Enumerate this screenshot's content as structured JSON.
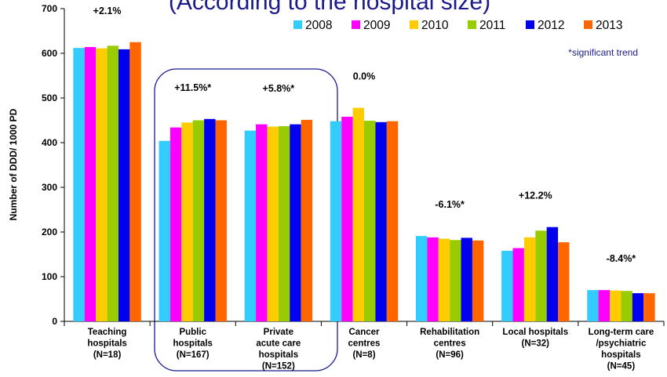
{
  "title_visible": "(According to the hospital size)",
  "note": "*significant trend",
  "colors": {
    "2008": "#33ccff",
    "2009": "#ff00ff",
    "2010": "#ffcc00",
    "2011": "#99cc00",
    "2012": "#0000ee",
    "2013": "#ff6600",
    "highlight_box": "#1a1a8c"
  },
  "chart_data": {
    "type": "bar",
    "ylabel": "Number of DDD/ 1000 PD",
    "ylim": [
      0,
      700
    ],
    "yticks": [
      0,
      100,
      200,
      300,
      400,
      500,
      600,
      700
    ],
    "grid": false,
    "legend_position": "top-right",
    "categories": [
      [
        "Teaching",
        "hospitals",
        "(N=18)"
      ],
      [
        "Public",
        "hospitals",
        "(N=167)"
      ],
      [
        "Private",
        "acute care",
        "hospitals",
        "(N=152)"
      ],
      [
        "Cancer",
        "centres",
        "(N=8)"
      ],
      [
        "Rehabilitation",
        "centres",
        "(N=96)"
      ],
      [
        "Local hospitals",
        "(N=32)"
      ],
      [
        "Long-term care",
        "/psychiatric",
        "hospitals",
        "(N=45)"
      ]
    ],
    "trend_labels": [
      "+2.1%",
      "+11.5%*",
      "+5.8%*",
      "0.0%",
      "-6.1%*",
      "+12.2%",
      "-8.4%*"
    ],
    "series": [
      {
        "name": "2008",
        "values": [
          612,
          404,
          427,
          448,
          191,
          158,
          70
        ]
      },
      {
        "name": "2009",
        "values": [
          614,
          434,
          441,
          458,
          188,
          164,
          70
        ]
      },
      {
        "name": "2010",
        "values": [
          611,
          445,
          436,
          478,
          185,
          188,
          69
        ]
      },
      {
        "name": "2011",
        "values": [
          617,
          450,
          437,
          449,
          182,
          203,
          68
        ]
      },
      {
        "name": "2012",
        "values": [
          609,
          453,
          441,
          446,
          187,
          211,
          63
        ]
      },
      {
        "name": "2013",
        "values": [
          625,
          450,
          451,
          448,
          181,
          177,
          63
        ]
      }
    ]
  }
}
